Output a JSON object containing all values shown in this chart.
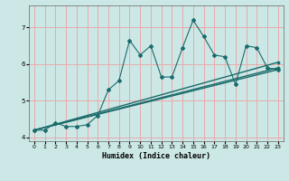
{
  "xlabel": "Humidex (Indice chaleur)",
  "ylabel": "",
  "bg_color": "#cce8e6",
  "grid_color": "#e8aaaa",
  "line_color": "#1a6b6b",
  "xlim": [
    -0.5,
    23.5
  ],
  "ylim": [
    3.9,
    7.6
  ],
  "yticks": [
    4,
    5,
    6,
    7
  ],
  "xticks": [
    0,
    1,
    2,
    3,
    4,
    5,
    6,
    7,
    8,
    9,
    10,
    11,
    12,
    13,
    14,
    15,
    16,
    17,
    18,
    19,
    20,
    21,
    22,
    23
  ],
  "series1_x": [
    0,
    1,
    2,
    3,
    4,
    5,
    6,
    7,
    8,
    9,
    10,
    11,
    12,
    13,
    14,
    15,
    16,
    17,
    18,
    19,
    20,
    21,
    22,
    23
  ],
  "series1_y": [
    4.2,
    4.2,
    4.4,
    4.3,
    4.3,
    4.35,
    4.6,
    5.3,
    5.55,
    6.65,
    6.25,
    6.5,
    5.65,
    5.65,
    6.45,
    7.2,
    6.75,
    6.25,
    6.2,
    5.45,
    6.5,
    6.45,
    5.9,
    5.85
  ],
  "series2_x": [
    0,
    23
  ],
  "series2_y": [
    4.2,
    5.85
  ],
  "series3_x": [
    0,
    23
  ],
  "series3_y": [
    4.2,
    6.05
  ],
  "series4_x": [
    0,
    23
  ],
  "series4_y": [
    4.2,
    5.9
  ]
}
